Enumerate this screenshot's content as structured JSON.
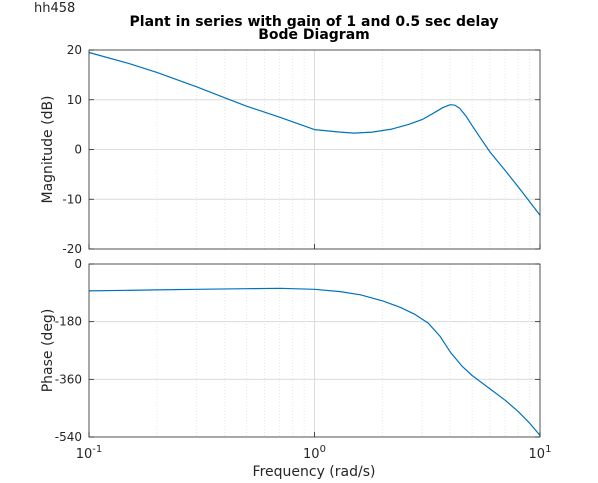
{
  "corner_label": "hh458",
  "chart_data": {
    "type": "line",
    "title": "Plant in series with gain of 1 and 0.5 sec delay",
    "subtitle": "Bode Diagram",
    "xlabel": "Frequency  (rad/s)",
    "xscale": "log",
    "xlim": [
      0.1,
      10
    ],
    "x_ticks": [
      {
        "value": 0.1,
        "base": "10",
        "exp": "-1"
      },
      {
        "value": 1,
        "base": "10",
        "exp": "0"
      },
      {
        "value": 10,
        "base": "10",
        "exp": "1"
      }
    ],
    "grid": true,
    "line_color": "#0072BD",
    "panels": [
      {
        "name": "magnitude",
        "ylabel": "Magnitude (dB)",
        "ylim": [
          -20,
          20
        ],
        "y_ticks": [
          20,
          10,
          0,
          -10,
          -20
        ],
        "x": [
          0.1,
          0.15,
          0.2,
          0.3,
          0.4,
          0.5,
          0.7,
          1.0,
          1.3,
          1.5,
          1.8,
          2.2,
          2.6,
          3.0,
          3.4,
          3.7,
          4.0,
          4.2,
          4.4,
          4.7,
          5.0,
          5.5,
          6.0,
          7.0,
          8.0,
          9.0,
          10.0
        ],
        "y": [
          19.5,
          17.3,
          15.5,
          12.6,
          10.4,
          8.7,
          6.5,
          4.0,
          3.5,
          3.3,
          3.5,
          4.1,
          5.0,
          6.0,
          7.4,
          8.4,
          9.0,
          8.9,
          8.3,
          6.7,
          4.8,
          2.0,
          -0.5,
          -4.2,
          -7.5,
          -10.5,
          -13.2
        ]
      },
      {
        "name": "phase",
        "ylabel": "Phase (deg)",
        "ylim": [
          -540,
          0
        ],
        "y_ticks": [
          0,
          -180,
          -360,
          -540
        ],
        "x": [
          0.1,
          0.2,
          0.3,
          0.5,
          0.7,
          1.0,
          1.3,
          1.6,
          2.0,
          2.4,
          2.8,
          3.2,
          3.6,
          4.0,
          4.5,
          5.0,
          6.0,
          7.0,
          8.0,
          9.0,
          10.0
        ],
        "y": [
          -84,
          -81,
          -79,
          -77,
          -76,
          -79,
          -86,
          -96,
          -115,
          -135,
          -158,
          -185,
          -225,
          -275,
          -318,
          -348,
          -390,
          -425,
          -460,
          -497,
          -535
        ]
      }
    ]
  }
}
